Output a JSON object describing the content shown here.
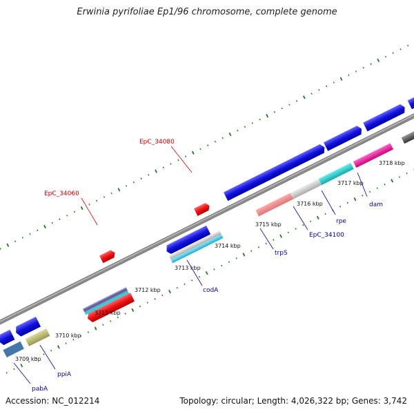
{
  "header": {
    "title": "Erwinia pyrifoliae Ep1/96 chromosome, complete genome"
  },
  "footer": {
    "accession": "Accession: NC_012214",
    "topology": "Topology: circular; Length: 4,026,322 bp; Genes: 3,742"
  },
  "ticks": [
    "3709 kbp",
    "3710 kbp",
    "3711 kbp",
    "3712 kbp",
    "3713 kbp",
    "3714 kbp",
    "3715 kbp",
    "3716 kbp",
    "3717 kbp",
    "3718 kbp"
  ],
  "labels": {
    "EpC_34080": "EpC_34080",
    "EpC_34060": "EpC_34060",
    "codA": "codA",
    "trpS": "trpS",
    "EpC_34100": "EpC_34100",
    "rpe": "rpe",
    "dam": "dam",
    "ppiA": "ppiA",
    "pabA": "pabA"
  },
  "colors": {
    "backbone": "#8a8a8a",
    "tick": "#1f7a1f",
    "cds_blue": "#1111dd",
    "red": "#ee1111",
    "cyan": "#22bbdd",
    "pink": "#ee8888",
    "grey": "#bbbbbb",
    "teal": "#22cccc",
    "magenta": "#ee1199",
    "dark": "#555555",
    "olive": "#bbbb77",
    "label_red": "#cc0000",
    "label_blue": "#0000aa"
  }
}
